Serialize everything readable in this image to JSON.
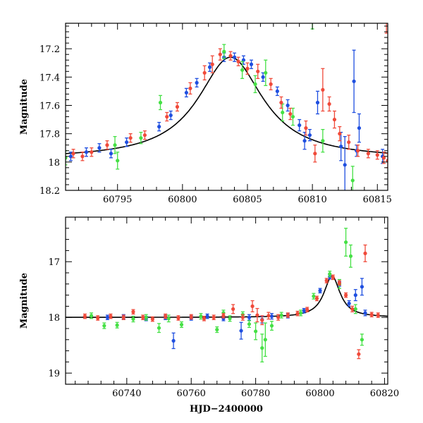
{
  "chart_data": [
    {
      "type": "scatter",
      "ylabel": "Magnitude",
      "xlabel": "",
      "xlim": [
        60791,
        60815.8
      ],
      "ylim": [
        18.2,
        17.02
      ],
      "y_inverted": true,
      "xticks": [
        60795,
        60800,
        60805,
        60810,
        60815
      ],
      "yticks": [
        17.2,
        17.4,
        17.6,
        17.8,
        18,
        18.2
      ],
      "ytick_labels": [
        "17.2",
        "17.4",
        "17.6",
        "17.8",
        "18",
        "18.2"
      ],
      "model": {
        "name": "fit",
        "color": "#000000",
        "peak_x": 60803.7,
        "peak_mag": 17.26,
        "base_mag": 17.98,
        "width": 2.9
      },
      "series": [
        {
          "name": "blue",
          "color": "#1f4fe0",
          "points": [
            [
              60791.4,
              17.96,
              0.03
            ],
            [
              60792.6,
              17.93,
              0.03
            ],
            [
              60793.6,
              17.9,
              0.03
            ],
            [
              60794.5,
              17.94,
              0.03
            ],
            [
              60795.7,
              17.86,
              0.03
            ],
            [
              60798.2,
              17.75,
              0.03
            ],
            [
              60799.1,
              17.67,
              0.03
            ],
            [
              60800.3,
              17.51,
              0.03
            ],
            [
              60801.1,
              17.44,
              0.03
            ],
            [
              60802.1,
              17.33,
              0.03
            ],
            [
              60803.2,
              17.26,
              0.03
            ],
            [
              60804.0,
              17.26,
              0.03
            ],
            [
              60804.7,
              17.28,
              0.03
            ],
            [
              60805.3,
              17.31,
              0.03
            ],
            [
              60806.2,
              17.4,
              0.03
            ],
            [
              60807.3,
              17.5,
              0.03
            ],
            [
              60808.1,
              17.6,
              0.04
            ],
            [
              60809.0,
              17.74,
              0.04
            ],
            [
              60809.4,
              17.85,
              0.06
            ],
            [
              60809.8,
              17.81,
              0.04
            ],
            [
              60810.4,
              17.58,
              0.08
            ],
            [
              60812.2,
              17.89,
              0.1
            ],
            [
              60812.5,
              18.02,
              0.2
            ],
            [
              60813.2,
              17.43,
              0.22
            ],
            [
              60813.4,
              17.92,
              0.04
            ],
            [
              60813.6,
              17.76,
              0.1
            ],
            [
              60815.4,
              17.96,
              0.05
            ]
          ]
        },
        {
          "name": "green",
          "color": "#45e045",
          "points": [
            [
              60791.0,
              17.97,
              0.05
            ],
            [
              60794.8,
              17.88,
              0.06
            ],
            [
              60795.0,
              17.99,
              0.06
            ],
            [
              60796.8,
              17.83,
              0.04
            ],
            [
              60798.3,
              17.58,
              0.05
            ],
            [
              60803.2,
              17.22,
              0.05
            ],
            [
              60804.6,
              17.35,
              0.06
            ],
            [
              60805.6,
              17.45,
              0.06
            ],
            [
              60806.4,
              17.37,
              0.09
            ],
            [
              60807.7,
              17.65,
              0.06
            ],
            [
              60808.5,
              17.68,
              0.06
            ],
            [
              60810.0,
              17.0,
              0.06
            ],
            [
              60810.8,
              17.85,
              0.08
            ],
            [
              60813.1,
              18.13,
              0.1
            ]
          ]
        },
        {
          "name": "red",
          "color": "#f04a3a",
          "points": [
            [
              60791.6,
              17.94,
              0.03
            ],
            [
              60792.3,
              17.96,
              0.03
            ],
            [
              60793.0,
              17.93,
              0.03
            ],
            [
              60794.2,
              17.88,
              0.03
            ],
            [
              60796.0,
              17.83,
              0.03
            ],
            [
              60797.1,
              17.81,
              0.03
            ],
            [
              60798.8,
              17.68,
              0.03
            ],
            [
              60799.6,
              17.61,
              0.03
            ],
            [
              60800.6,
              17.48,
              0.04
            ],
            [
              60801.7,
              17.37,
              0.05
            ],
            [
              60802.3,
              17.31,
              0.06
            ],
            [
              60802.9,
              17.24,
              0.04
            ],
            [
              60803.7,
              17.25,
              0.03
            ],
            [
              60804.3,
              17.29,
              0.03
            ],
            [
              60805.0,
              17.34,
              0.04
            ],
            [
              60805.8,
              17.36,
              0.05
            ],
            [
              60806.8,
              17.45,
              0.04
            ],
            [
              60807.6,
              17.58,
              0.04
            ],
            [
              60808.3,
              17.66,
              0.04
            ],
            [
              60809.5,
              17.76,
              0.05
            ],
            [
              60810.2,
              17.94,
              0.06
            ],
            [
              60810.8,
              17.49,
              0.15
            ],
            [
              60811.3,
              17.59,
              0.05
            ],
            [
              60811.7,
              17.7,
              0.06
            ],
            [
              60812.1,
              17.8,
              0.05
            ],
            [
              60812.8,
              17.86,
              0.05
            ],
            [
              60813.5,
              17.92,
              0.04
            ],
            [
              60814.3,
              17.94,
              0.03
            ],
            [
              60815.0,
              17.95,
              0.03
            ],
            [
              60815.5,
              17.97,
              0.04
            ],
            [
              60815.8,
              17.99,
              0.05
            ],
            [
              60815.7,
              17.01,
              0.08
            ]
          ]
        }
      ]
    },
    {
      "type": "scatter",
      "ylabel": "Magnitude",
      "xlabel": "HJD−2400000",
      "xlim": [
        60721,
        60821
      ],
      "ylim": [
        19.2,
        16.2
      ],
      "y_inverted": true,
      "xticks": [
        60740,
        60760,
        60780,
        60800,
        60820
      ],
      "yticks": [
        17,
        18,
        19
      ],
      "ytick_labels": [
        "17",
        "18",
        "19"
      ],
      "model": {
        "name": "fit",
        "color": "#000000",
        "peak_x": 60803.7,
        "peak_mag": 17.26,
        "base_mag": 18.0,
        "width": 2.9
      },
      "series": [
        {
          "name": "blue",
          "color": "#1f4fe0",
          "points": [
            [
              60734,
              18.0,
              0.04
            ],
            [
              60739,
              17.99,
              0.04
            ],
            [
              60746,
              18.02,
              0.04
            ],
            [
              60752,
              18.0,
              0.04
            ],
            [
              60754.5,
              18.42,
              0.14
            ],
            [
              60760,
              18.01,
              0.04
            ],
            [
              60765,
              17.98,
              0.04
            ],
            [
              60770,
              18.02,
              0.04
            ],
            [
              60775.5,
              18.24,
              0.15
            ],
            [
              60778,
              18.0,
              0.05
            ],
            [
              60782,
              18.04,
              0.06
            ],
            [
              60785,
              17.98,
              0.05
            ],
            [
              60790,
              17.97,
              0.04
            ],
            [
              60795,
              17.88,
              0.04
            ],
            [
              60800,
              17.52,
              0.04
            ],
            [
              60803,
              17.27,
              0.04
            ],
            [
              60806,
              17.4,
              0.04
            ],
            [
              60809,
              17.75,
              0.05
            ],
            [
              60811,
              17.6,
              0.1
            ],
            [
              60813,
              17.45,
              0.15
            ],
            [
              60814,
              17.92,
              0.05
            ]
          ]
        },
        {
          "name": "green",
          "color": "#45e045",
          "points": [
            [
              60729,
              17.97,
              0.05
            ],
            [
              60733,
              18.15,
              0.05
            ],
            [
              60737,
              18.14,
              0.05
            ],
            [
              60742,
              18.03,
              0.05
            ],
            [
              60746,
              18.0,
              0.05
            ],
            [
              60750,
              18.19,
              0.08
            ],
            [
              60753,
              18.02,
              0.06
            ],
            [
              60757,
              18.13,
              0.05
            ],
            [
              60763,
              17.98,
              0.05
            ],
            [
              60768,
              18.22,
              0.05
            ],
            [
              60770,
              17.92,
              0.05
            ],
            [
              60772,
              18.02,
              0.05
            ],
            [
              60776,
              17.95,
              0.05
            ],
            [
              60778,
              18.12,
              0.06
            ],
            [
              60780,
              18.25,
              0.15
            ],
            [
              60782,
              18.55,
              0.25
            ],
            [
              60783,
              18.4,
              0.3
            ],
            [
              60785,
              18.15,
              0.08
            ],
            [
              60788,
              17.96,
              0.05
            ],
            [
              60794,
              17.92,
              0.05
            ],
            [
              60798,
              17.62,
              0.05
            ],
            [
              60803,
              17.22,
              0.05
            ],
            [
              60806,
              17.4,
              0.08
            ],
            [
              60808,
              16.65,
              0.25
            ],
            [
              60809.5,
              16.9,
              0.2
            ],
            [
              60811,
              17.85,
              0.08
            ],
            [
              60813,
              18.4,
              0.1
            ]
          ]
        },
        {
          "name": "red",
          "color": "#f04a3a",
          "points": [
            [
              60727,
              17.98,
              0.04
            ],
            [
              60731,
              18.01,
              0.04
            ],
            [
              60735,
              17.98,
              0.04
            ],
            [
              60739,
              18.0,
              0.04
            ],
            [
              60742,
              17.9,
              0.04
            ],
            [
              60745,
              18.0,
              0.04
            ],
            [
              60748,
              18.03,
              0.04
            ],
            [
              60752,
              17.98,
              0.04
            ],
            [
              60756,
              18.01,
              0.04
            ],
            [
              60760,
              17.99,
              0.04
            ],
            [
              60764,
              18.02,
              0.04
            ],
            [
              60767,
              18.0,
              0.04
            ],
            [
              60770,
              17.97,
              0.04
            ],
            [
              60773,
              17.85,
              0.08
            ],
            [
              60776,
              18.0,
              0.05
            ],
            [
              60779,
              17.8,
              0.1
            ],
            [
              60780.5,
              17.96,
              0.12
            ],
            [
              60782,
              18.05,
              0.08
            ],
            [
              60784,
              17.97,
              0.06
            ],
            [
              60787,
              18.0,
              0.05
            ],
            [
              60790,
              17.96,
              0.04
            ],
            [
              60793,
              17.93,
              0.04
            ],
            [
              60796,
              17.86,
              0.04
            ],
            [
              60799,
              17.66,
              0.04
            ],
            [
              60802,
              17.34,
              0.04
            ],
            [
              60804,
              17.28,
              0.04
            ],
            [
              60806,
              17.38,
              0.04
            ],
            [
              60808,
              17.6,
              0.04
            ],
            [
              60810,
              17.85,
              0.05
            ],
            [
              60812,
              18.66,
              0.08
            ],
            [
              60814,
              16.85,
              0.15
            ],
            [
              60816,
              17.95,
              0.04
            ],
            [
              60818,
              17.96,
              0.04
            ]
          ]
        }
      ]
    }
  ]
}
